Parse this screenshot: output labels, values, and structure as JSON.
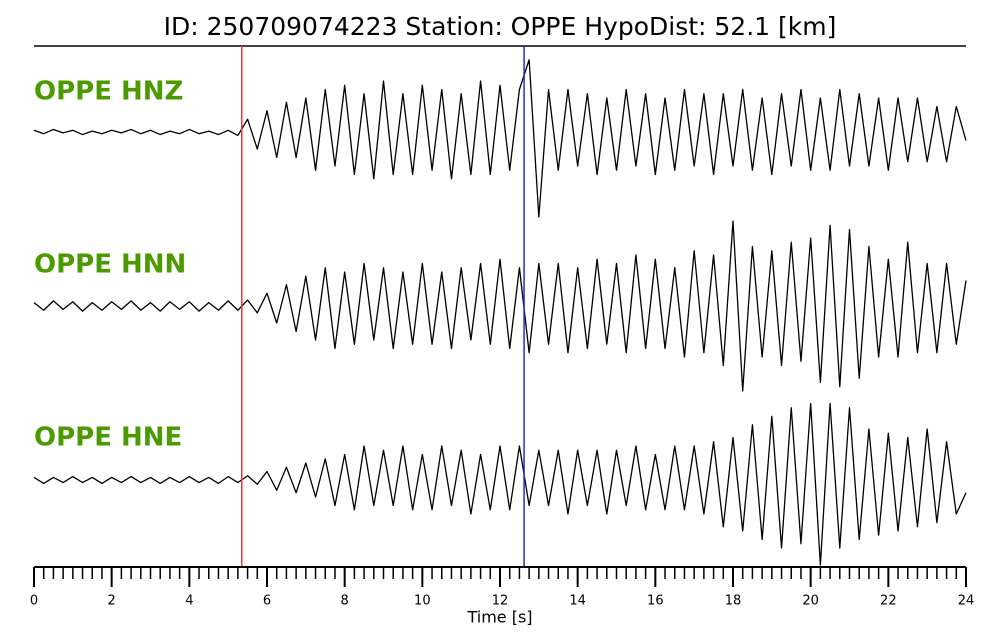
{
  "chart_data": {
    "type": "line",
    "title": "ID: 250709074223   Station: OPPE   HypoDist:    52.1 [km]",
    "xlabel": "Time [s]",
    "xlim": [
      0,
      24
    ],
    "xticks": [
      0,
      2,
      4,
      6,
      8,
      10,
      12,
      14,
      16,
      18,
      20,
      22,
      24
    ],
    "xminor_step": 0.25,
    "ylim": [
      -1,
      1
    ],
    "label_color": "#4a9a00",
    "markers": [
      {
        "x": 5.35,
        "color": "#e8383d"
      },
      {
        "x": 12.62,
        "color": "#2d2dbb"
      }
    ],
    "x": [
      0,
      0.25,
      0.5,
      0.75,
      1,
      1.25,
      1.5,
      1.75,
      2,
      2.25,
      2.5,
      2.75,
      3,
      3.25,
      3.5,
      3.75,
      4,
      4.25,
      4.5,
      4.75,
      5,
      5.25,
      5.5,
      5.75,
      6,
      6.25,
      6.5,
      6.75,
      7,
      7.25,
      7.5,
      7.75,
      8,
      8.25,
      8.5,
      8.75,
      9,
      9.25,
      9.5,
      9.75,
      10,
      10.25,
      10.5,
      10.75,
      11,
      11.25,
      11.5,
      11.75,
      12,
      12.25,
      12.5,
      12.75,
      13,
      13.25,
      13.5,
      13.75,
      14,
      14.25,
      14.5,
      14.75,
      15,
      15.25,
      15.5,
      15.75,
      16,
      16.25,
      16.5,
      16.75,
      17,
      17.25,
      17.5,
      17.75,
      18,
      18.25,
      18.5,
      18.75,
      19,
      19.25,
      19.5,
      19.75,
      20,
      20.25,
      20.5,
      20.75,
      21,
      21.25,
      21.5,
      21.75,
      22,
      22.25,
      22.5,
      22.75,
      23,
      23.25,
      23.5,
      23.75,
      24
    ],
    "series": [
      {
        "name": "OPPE HNZ",
        "color": "#000000",
        "values": [
          0.02,
          -0.02,
          0.03,
          -0.01,
          0.02,
          -0.03,
          0.01,
          -0.02,
          0.02,
          -0.01,
          0.03,
          -0.02,
          0.02,
          -0.03,
          0.01,
          -0.02,
          0.03,
          -0.02,
          0.01,
          -0.03,
          0.02,
          -0.04,
          0.15,
          -0.2,
          0.25,
          -0.3,
          0.35,
          -0.3,
          0.4,
          -0.45,
          0.5,
          -0.4,
          0.55,
          -0.5,
          0.45,
          -0.55,
          0.6,
          -0.5,
          0.45,
          -0.5,
          0.55,
          -0.45,
          0.5,
          -0.55,
          0.45,
          -0.5,
          0.6,
          -0.5,
          0.55,
          -0.45,
          0.5,
          0.85,
          -1.0,
          0.5,
          -0.45,
          0.5,
          -0.4,
          0.45,
          -0.5,
          0.4,
          -0.45,
          0.5,
          -0.4,
          0.45,
          -0.5,
          0.4,
          -0.45,
          0.5,
          -0.4,
          0.45,
          -0.5,
          0.45,
          -0.4,
          0.5,
          -0.45,
          0.4,
          -0.5,
          0.45,
          -0.4,
          0.5,
          -0.45,
          0.4,
          -0.45,
          0.5,
          -0.4,
          0.45,
          -0.4,
          0.4,
          -0.45,
          0.4,
          -0.35,
          0.4,
          -0.35,
          0.3,
          -0.35,
          0.3,
          -0.1
        ]
      },
      {
        "name": "OPPE HNN",
        "color": "#000000",
        "values": [
          0.04,
          -0.05,
          0.06,
          -0.04,
          0.05,
          -0.06,
          0.04,
          -0.05,
          0.05,
          -0.04,
          0.06,
          -0.05,
          0.04,
          -0.06,
          0.05,
          -0.04,
          0.05,
          -0.06,
          0.04,
          -0.05,
          0.06,
          -0.05,
          0.07,
          -0.08,
          0.15,
          -0.2,
          0.25,
          -0.3,
          0.35,
          -0.4,
          0.45,
          -0.5,
          0.4,
          -0.45,
          0.5,
          -0.4,
          0.45,
          -0.5,
          0.4,
          -0.45,
          0.5,
          -0.45,
          0.4,
          -0.5,
          0.45,
          -0.4,
          0.5,
          -0.45,
          0.55,
          -0.5,
          0.45,
          -0.55,
          0.5,
          -0.45,
          0.5,
          -0.55,
          0.45,
          -0.5,
          0.55,
          -0.45,
          0.5,
          -0.55,
          0.6,
          -0.5,
          0.55,
          -0.5,
          0.45,
          -0.6,
          0.65,
          -0.55,
          0.6,
          -0.7,
          1.0,
          -1.0,
          0.7,
          -0.6,
          0.65,
          -0.7,
          0.75,
          -0.65,
          0.8,
          -0.9,
          0.95,
          -0.95,
          0.9,
          -0.85,
          0.7,
          -0.6,
          0.55,
          -0.6,
          0.75,
          -0.55,
          0.5,
          -0.55,
          0.5,
          -0.45,
          0.3
        ]
      },
      {
        "name": "OPPE HNE",
        "color": "#000000",
        "values": [
          0.03,
          -0.04,
          0.03,
          -0.03,
          0.04,
          -0.03,
          0.03,
          -0.04,
          0.03,
          -0.03,
          0.04,
          -0.03,
          0.03,
          -0.04,
          0.03,
          -0.03,
          0.04,
          -0.03,
          0.03,
          -0.04,
          0.04,
          -0.03,
          0.05,
          -0.05,
          0.1,
          -0.12,
          0.15,
          -0.15,
          0.2,
          -0.2,
          0.25,
          -0.3,
          0.3,
          -0.35,
          0.4,
          -0.3,
          0.35,
          -0.3,
          0.4,
          -0.35,
          0.3,
          -0.35,
          0.4,
          -0.3,
          0.35,
          -0.4,
          0.3,
          -0.35,
          0.4,
          -0.35,
          0.4,
          -0.3,
          0.35,
          -0.3,
          0.35,
          -0.4,
          0.35,
          -0.3,
          0.35,
          -0.4,
          0.35,
          -0.3,
          0.4,
          -0.35,
          0.3,
          -0.35,
          0.4,
          -0.35,
          0.4,
          -0.4,
          0.45,
          -0.55,
          0.5,
          -0.6,
          0.65,
          -0.7,
          0.75,
          -0.8,
          0.85,
          -0.75,
          0.9,
          -1.0,
          0.9,
          -0.8,
          0.85,
          -0.7,
          0.6,
          -0.65,
          0.55,
          -0.6,
          0.5,
          -0.55,
          0.6,
          -0.5,
          0.45,
          -0.4,
          -0.15
        ]
      }
    ]
  }
}
